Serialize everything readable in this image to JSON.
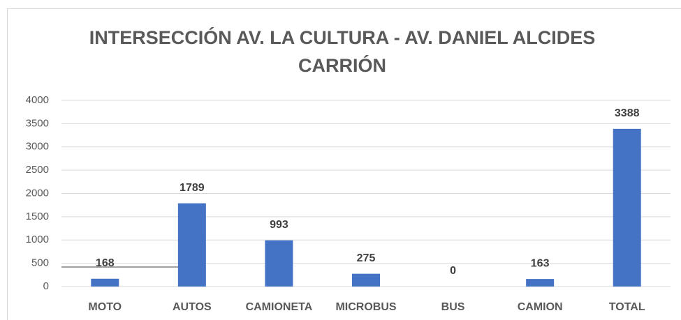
{
  "chart_data": {
    "type": "bar",
    "title": "INTERSECCIÓN AV. LA CULTURA - AV. DANIEL ALCIDES CARRIÓN",
    "categories": [
      "MOTO",
      "AUTOS",
      "CAMIONETA",
      "MICROBUS",
      "BUS",
      "CAMION",
      "TOTAL"
    ],
    "values": [
      168,
      1789,
      993,
      275,
      0,
      163,
      3388
    ],
    "color": "#4472c4",
    "ylim": [
      0,
      4000
    ],
    "yticks": [
      0,
      500,
      1000,
      1500,
      2000,
      2500,
      3000,
      3500,
      4000
    ],
    "grid": true
  }
}
